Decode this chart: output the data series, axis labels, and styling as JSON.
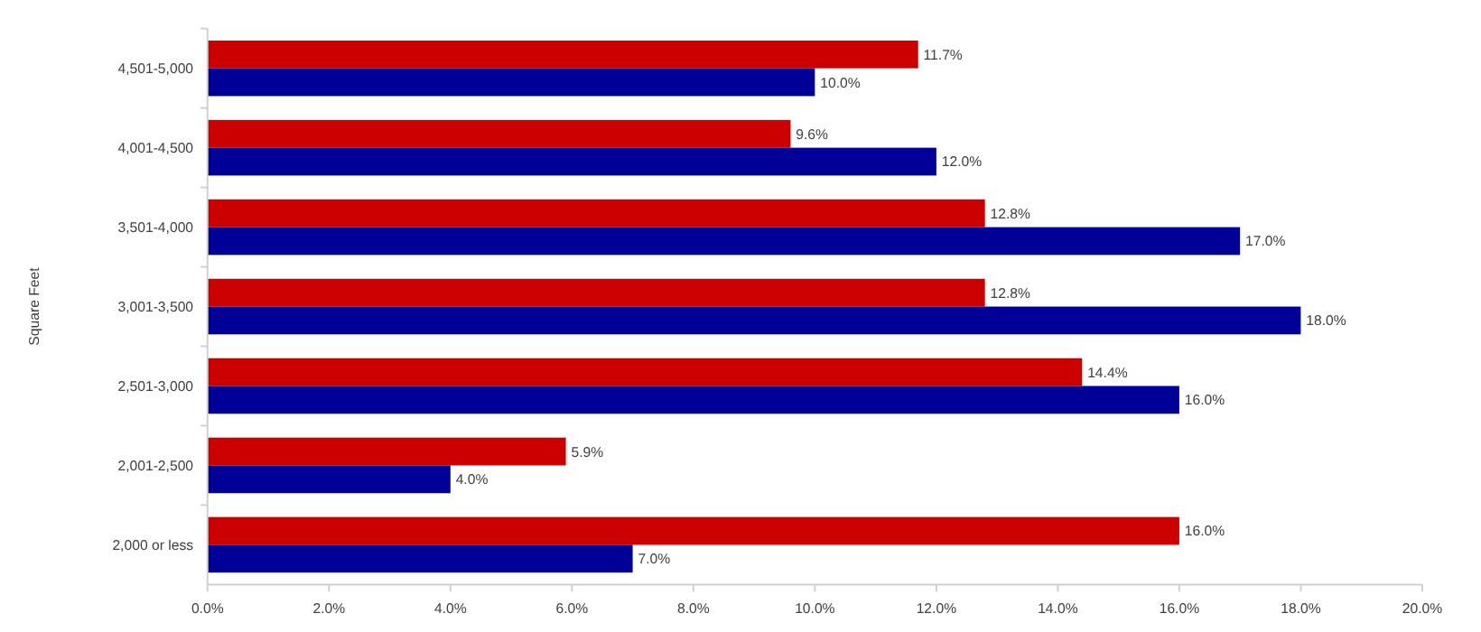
{
  "chart_data": {
    "type": "bar",
    "orientation": "horizontal",
    "ylabel": "Square Feet",
    "categories": [
      "4,501-5,000",
      "4,001-4,500",
      "3,501-4,000",
      "3,001-3,500",
      "2,501-3,000",
      "2,001-2,500",
      "2,000 or less"
    ],
    "series": [
      {
        "color": "#cc0000",
        "values": [
          11.7,
          9.6,
          12.8,
          12.8,
          14.4,
          5.9,
          16.0
        ],
        "value_labels": [
          "11.7%",
          "9.6%",
          "12.8%",
          "12.8%",
          "14.4%",
          "5.9%",
          "16.0%"
        ]
      },
      {
        "color": "#000099",
        "values": [
          10.0,
          12.0,
          17.0,
          18.0,
          16.0,
          4.0,
          7.0
        ],
        "value_labels": [
          "10.0%",
          "12.0%",
          "17.0%",
          "18.0%",
          "16.0%",
          "4.0%",
          "7.0%"
        ]
      }
    ],
    "xlim": [
      0,
      20
    ],
    "xticks": [
      {
        "value": 0,
        "label": "0.0%"
      },
      {
        "value": 2,
        "label": "2.0%"
      },
      {
        "value": 4,
        "label": "4.0%"
      },
      {
        "value": 6,
        "label": "6.0%"
      },
      {
        "value": 8,
        "label": "8.0%"
      },
      {
        "value": 10,
        "label": "10.0%"
      },
      {
        "value": 12,
        "label": "12.0%"
      },
      {
        "value": 14,
        "label": "14.0%"
      },
      {
        "value": 16,
        "label": "16.0%"
      },
      {
        "value": 18,
        "label": "18.0%"
      },
      {
        "value": 20,
        "label": "20.0%"
      }
    ],
    "grid": false
  }
}
